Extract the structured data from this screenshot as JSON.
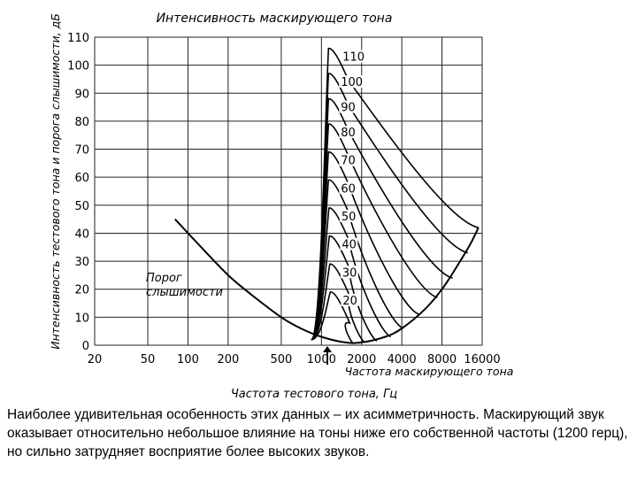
{
  "chart_data": {
    "type": "line",
    "title": "Интенсивность маскирующего тона",
    "ylabel": "Интенсивность тестового тона и порога слышимости, дБ",
    "xlabel": "Частота тестового тона, Гц",
    "x_scale": "log",
    "xlim": [
      20,
      16000
    ],
    "ylim": [
      0,
      110
    ],
    "x_ticks": [
      20,
      50,
      100,
      200,
      500,
      1000,
      2000,
      4000,
      8000,
      16000
    ],
    "x_tick_labels": [
      "20",
      "50",
      "100",
      "200",
      "500",
      "1000",
      "2000",
      "4000",
      "8000",
      "16000"
    ],
    "y_ticks": [
      0,
      10,
      20,
      30,
      40,
      50,
      60,
      70,
      80,
      90,
      100,
      110
    ],
    "y_tick_labels": [
      "0",
      "10",
      "20",
      "30",
      "40",
      "50",
      "60",
      "70",
      "80",
      "90",
      "100",
      "110"
    ],
    "grid": true,
    "masker_frequency": 1200,
    "masker_marker_label": "Частота маскирующего тона",
    "threshold_label": [
      "Порог",
      "слышимости"
    ],
    "threshold": {
      "name": "Порог слышимости",
      "x": [
        80,
        120,
        200,
        300,
        500,
        700,
        1000,
        1500,
        2000,
        3000,
        4000,
        6000,
        8000,
        10000,
        13000,
        15000
      ],
      "y": [
        45,
        36,
        25,
        18,
        10,
        6,
        3,
        1,
        1,
        3,
        6,
        13,
        20,
        27,
        36,
        42
      ]
    },
    "series": [
      {
        "name": "110",
        "label": "110",
        "peak": 106,
        "right_end_x": 15000,
        "right_end_y": 42
      },
      {
        "name": "100",
        "label": "100",
        "peak": 97,
        "right_end_x": 12500,
        "right_end_y": 33
      },
      {
        "name": "90",
        "label": "90",
        "peak": 88,
        "right_end_x": 9600,
        "right_end_y": 24
      },
      {
        "name": "80",
        "label": "80",
        "peak": 79,
        "right_end_x": 7400,
        "right_end_y": 17
      },
      {
        "name": "70",
        "label": "70",
        "peak": 69,
        "right_end_x": 5400,
        "right_end_y": 11
      },
      {
        "name": "60",
        "label": "60",
        "peak": 59,
        "right_end_x": 4100,
        "right_end_y": 6
      },
      {
        "name": "50",
        "label": "50",
        "peak": 49,
        "right_end_x": 3300,
        "right_end_y": 3
      },
      {
        "name": "40",
        "label": "40",
        "peak": 39,
        "right_end_x": 2600,
        "right_end_y": 1.5
      },
      {
        "name": "30",
        "label": "30",
        "peak": 29,
        "right_end_x": 2100,
        "right_end_y": 1
      },
      {
        "name": "20",
        "label": "20",
        "peak": 19,
        "right_end_x": 1700,
        "right_end_y": 1
      }
    ]
  },
  "caption": "Наиболее удивительная особенность этих данных – их асимметричность. Маскирующий звук оказывает относительно небольшое влияние на тоны ниже его собственной частоты (1200 герц), но сильно затрудняет восприятие более высоких звуков."
}
